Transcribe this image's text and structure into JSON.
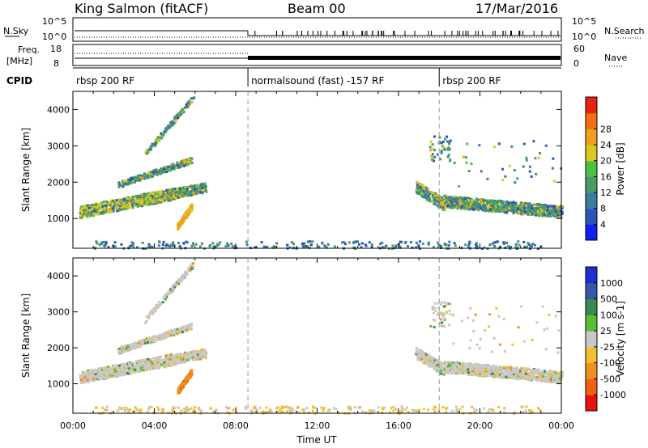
{
  "header": {
    "station": "King Salmon (fitACF)",
    "beam": "Beam 00",
    "date": "17/Mar/2016"
  },
  "sky_panel": {
    "left_label": "N.Sky",
    "left_ticks": [
      "10^5",
      "10^0"
    ],
    "right_label": "N.Search",
    "right_ticks": [
      "10^5",
      "10^0"
    ]
  },
  "freq_panel": {
    "left_label_line1": "Freq.",
    "left_label_line2": "[MHz]",
    "left_ticks": [
      "18",
      "8"
    ],
    "right_label": "Nave",
    "right_ticks": [
      "60",
      "0"
    ]
  },
  "cpid_panel": {
    "label": "CPID",
    "segments": [
      {
        "label": "rbsp 200 RF",
        "start_hour": 0
      },
      {
        "label": "normalsound (fast) -157 RF",
        "start_hour": 8.6
      },
      {
        "label": "rbsp 200 RF",
        "start_hour": 18.0
      }
    ]
  },
  "chart_data": [
    {
      "type": "heatmap",
      "title": "Power",
      "xlabel": "",
      "ylabel": "Slant Range [km]",
      "x_ticks": [
        "00:00",
        "04:00",
        "08:00",
        "12:00",
        "16:00",
        "20:00",
        "00:00"
      ],
      "xlim_hours": [
        0,
        24
      ],
      "ylim": [
        180,
        4500
      ],
      "y_ticks": [
        1000,
        2000,
        3000,
        4000
      ],
      "colorbar": {
        "label": "Power [dB]",
        "ticks": [
          "4",
          "8",
          "12",
          "16",
          "20",
          "24",
          "28"
        ],
        "colors": [
          "#1020f0",
          "#2a55b8",
          "#3c7ca0",
          "#4a9a66",
          "#4cc040",
          "#d8c820",
          "#f0a020",
          "#f07010",
          "#e82010"
        ]
      },
      "dashed_hours": [
        8.6,
        18.0
      ],
      "features": [
        {
          "name": "upper slanted echo band",
          "hour": [
            2.2,
            5.8
          ],
          "range_km": [
            1950,
            2650
          ],
          "dominant_dB": 10
        },
        {
          "name": "main slanted echo band",
          "hour": [
            0.3,
            6.5
          ],
          "range_km": [
            1050,
            1900
          ],
          "dominant_dB": 16
        },
        {
          "name": "strong spur",
          "hour": [
            5.1,
            5.8
          ],
          "range_km": [
            750,
            1350
          ],
          "dominant_dB": 24
        },
        {
          "name": "late echo band",
          "hour": [
            16.8,
            24
          ],
          "range_km": [
            1150,
            2050
          ],
          "dominant_dB": 10
        }
      ]
    },
    {
      "type": "heatmap",
      "title": "Velocity",
      "xlabel": "Time UT",
      "ylabel": "Slant Range [km]",
      "x_ticks": [
        "00:00",
        "04:00",
        "08:00",
        "12:00",
        "16:00",
        "20:00",
        "00:00"
      ],
      "xlim_hours": [
        0,
        24
      ],
      "ylim": [
        180,
        4500
      ],
      "y_ticks": [
        1000,
        2000,
        3000,
        4000
      ],
      "colorbar": {
        "label": "Velocity [m s-1]",
        "ticks": [
          "1000",
          "500",
          "100",
          "25",
          "-25",
          "-100",
          "-500",
          "-1000"
        ],
        "colors": [
          "#2030d0",
          "#3558a8",
          "#3a8a50",
          "#58c030",
          "#c8c8c8",
          "#f0c030",
          "#f09020",
          "#f06010",
          "#e81010"
        ]
      },
      "dashed_hours": [
        8.6,
        18.0
      ],
      "features": [
        {
          "name": "upper slanted echo band",
          "hour": [
            2.2,
            5.8
          ],
          "range_km": [
            1950,
            2650
          ],
          "dominant_velocity": -25
        },
        {
          "name": "main slanted echo band",
          "hour": [
            0.3,
            6.5
          ],
          "range_km": [
            1050,
            1900
          ],
          "dominant_velocity": 0
        },
        {
          "name": "strong spur",
          "hour": [
            5.1,
            5.8
          ],
          "range_km": [
            750,
            1350
          ],
          "dominant_velocity": -500
        },
        {
          "name": "late echo band",
          "hour": [
            16.8,
            24
          ],
          "range_km": [
            1150,
            2050
          ],
          "dominant_velocity": 0
        }
      ]
    }
  ]
}
